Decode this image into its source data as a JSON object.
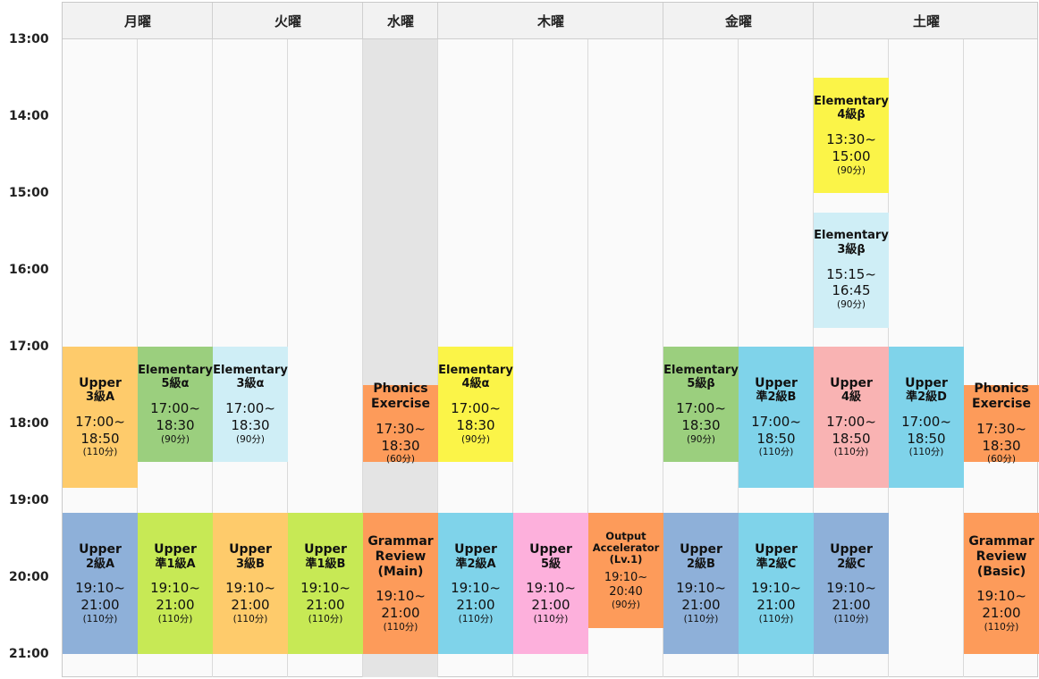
{
  "days": [
    "月曜",
    "火曜",
    "水曜",
    "木曜",
    "金曜",
    "土曜"
  ],
  "times": [
    "13:00",
    "14:00",
    "15:00",
    "16:00",
    "17:00",
    "18:00",
    "19:00",
    "20:00",
    "21:00"
  ],
  "classes": [
    {
      "day": "月曜",
      "col": 0,
      "name": "Upper",
      "level": "3級A",
      "time": "17:00~\n18:50",
      "duration": "(110分)",
      "start": "17:00",
      "end": "18:50",
      "color": "#fecb6b"
    },
    {
      "day": "月曜",
      "col": 1,
      "name": "Elementary",
      "level": "5級α",
      "time": "17:00~\n18:30",
      "duration": "(90分)",
      "start": "17:00",
      "end": "18:30",
      "color": "#9bcf7e"
    },
    {
      "day": "火曜",
      "col": 2,
      "name": "Elementary",
      "level": "3級α",
      "time": "17:00~\n18:30",
      "duration": "(90分)",
      "start": "17:00",
      "end": "18:30",
      "color": "#cfeef6"
    },
    {
      "day": "水曜",
      "col": 4,
      "name": "Phonics\nExercise",
      "level": "",
      "time": "17:30~\n18:30",
      "duration": "(60分)",
      "start": "17:30",
      "end": "18:30",
      "color": "#fd9b5a"
    },
    {
      "day": "木曜",
      "col": 5,
      "name": "Elementary",
      "level": "4級α",
      "time": "17:00~\n18:30",
      "duration": "(90分)",
      "start": "17:00",
      "end": "18:30",
      "color": "#fbf448"
    },
    {
      "day": "金曜",
      "col": 8,
      "name": "Elementary",
      "level": "5級β",
      "time": "17:00~\n18:30",
      "duration": "(90分)",
      "start": "17:00",
      "end": "18:30",
      "color": "#9bcf7e"
    },
    {
      "day": "金曜",
      "col": 9,
      "name": "Upper",
      "level": "準2級B",
      "time": "17:00~\n18:50",
      "duration": "(110分)",
      "start": "17:00",
      "end": "18:50",
      "color": "#7fd3ea"
    },
    {
      "day": "土曜",
      "col": 10,
      "name": "Elementary",
      "level": "4級β",
      "time": "13:30~\n15:00",
      "duration": "(90分)",
      "start": "13:30",
      "end": "15:00",
      "color": "#fbf448"
    },
    {
      "day": "土曜",
      "col": 10,
      "name": "Elementary",
      "level": "3級β",
      "time": "15:15~\n16:45",
      "duration": "(90分)",
      "start": "15:15",
      "end": "16:45",
      "color": "#cfeef6"
    },
    {
      "day": "土曜",
      "col": 10,
      "name": "Upper",
      "level": "4級",
      "time": "17:00~\n18:50",
      "duration": "(110分)",
      "start": "17:00",
      "end": "18:50",
      "color": "#f9b3b3"
    },
    {
      "day": "土曜",
      "col": 11,
      "name": "Upper",
      "level": "準2級D",
      "time": "17:00~\n18:50",
      "duration": "(110分)",
      "start": "17:00",
      "end": "18:50",
      "color": "#7fd3ea"
    },
    {
      "day": "土曜",
      "col": 12,
      "name": "Phonics\nExercise",
      "level": "",
      "time": "17:30~\n18:30",
      "duration": "(60分)",
      "start": "17:30",
      "end": "18:30",
      "color": "#fd9b5a"
    },
    {
      "day": "月曜",
      "col": 0,
      "name": "Upper",
      "level": "2級A",
      "time": "19:10~\n21:00",
      "duration": "(110分)",
      "start": "19:10",
      "end": "21:00",
      "color": "#8eb0d9"
    },
    {
      "day": "月曜",
      "col": 1,
      "name": "Upper",
      "level": "準1級A",
      "time": "19:10~\n21:00",
      "duration": "(110分)",
      "start": "19:10",
      "end": "21:00",
      "color": "#c7e955"
    },
    {
      "day": "火曜",
      "col": 2,
      "name": "Upper",
      "level": "3級B",
      "time": "19:10~\n21:00",
      "duration": "(110分)",
      "start": "19:10",
      "end": "21:00",
      "color": "#fecb6b"
    },
    {
      "day": "火曜",
      "col": 3,
      "name": "Upper",
      "level": "準1級B",
      "time": "19:10~\n21:00",
      "duration": "(110分)",
      "start": "19:10",
      "end": "21:00",
      "color": "#c7e955"
    },
    {
      "day": "水曜",
      "col": 4,
      "name": "Grammar\nReview\n(Main)",
      "level": "",
      "time": "19:10~\n21:00",
      "duration": "(110分)",
      "start": "19:10",
      "end": "21:00",
      "color": "#fd9b5a"
    },
    {
      "day": "木曜",
      "col": 5,
      "name": "Upper",
      "level": "準2級A",
      "time": "19:10~\n21:00",
      "duration": "(110分)",
      "start": "19:10",
      "end": "21:00",
      "color": "#7fd3ea"
    },
    {
      "day": "木曜",
      "col": 6,
      "name": "Upper",
      "level": "5級",
      "time": "19:10~\n21:00",
      "duration": "(110分)",
      "start": "19:10",
      "end": "21:00",
      "color": "#fdb0dc"
    },
    {
      "day": "木曜",
      "col": 7,
      "name": "Output\nAccelerator\n(Lv.1)",
      "level": "",
      "time": "19:10~\n20:40",
      "duration": "(90分)",
      "start": "19:10",
      "end": "20:40",
      "color": "#fd9b5a"
    },
    {
      "day": "金曜",
      "col": 8,
      "name": "Upper",
      "level": "2級B",
      "time": "19:10~\n21:00",
      "duration": "(110分)",
      "start": "19:10",
      "end": "21:00",
      "color": "#8eb0d9"
    },
    {
      "day": "金曜",
      "col": 9,
      "name": "Upper",
      "level": "準2級C",
      "time": "19:10~\n21:00",
      "duration": "(110分)",
      "start": "19:10",
      "end": "21:00",
      "color": "#7fd3ea"
    },
    {
      "day": "土曜",
      "col": 10,
      "name": "Upper",
      "level": "2級C",
      "time": "19:10~\n21:00",
      "duration": "(110分)",
      "start": "19:10",
      "end": "21:00",
      "color": "#8eb0d9"
    },
    {
      "day": "土曜",
      "col": 12,
      "name": "Grammar\nReview\n(Basic)",
      "level": "",
      "time": "19:10~\n21:00",
      "duration": "(110分)",
      "start": "19:10",
      "end": "21:00",
      "color": "#fd9b5a"
    }
  ]
}
